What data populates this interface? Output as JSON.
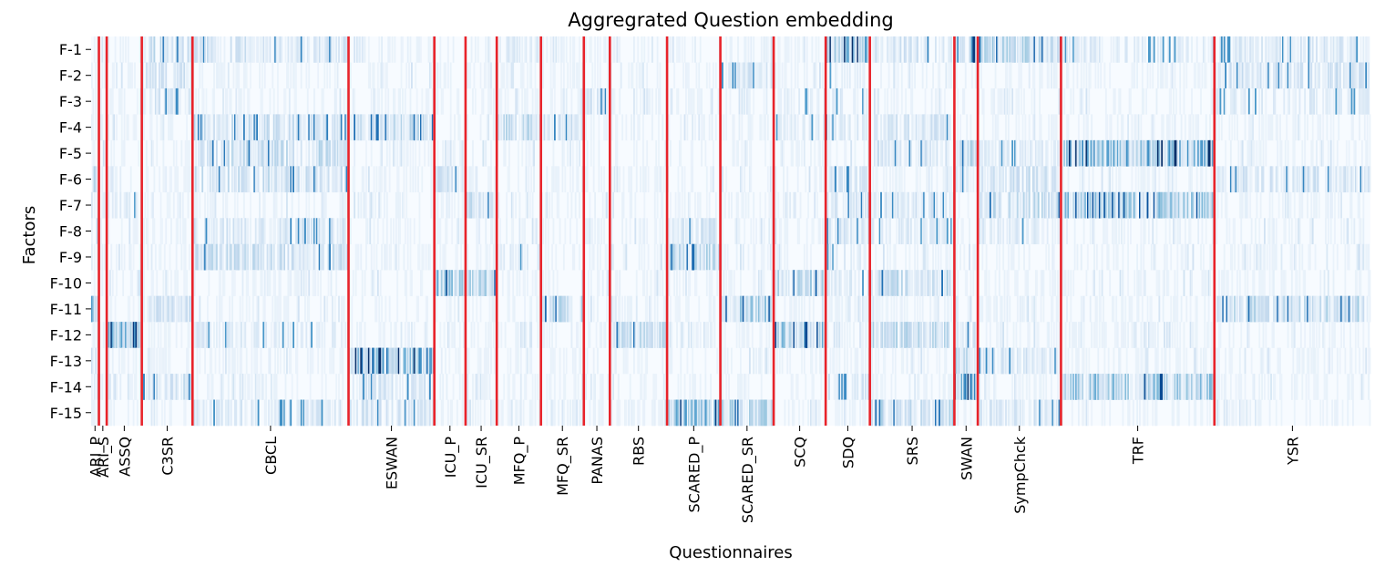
{
  "chart_data": {
    "type": "heatmap",
    "title": "Aggregrated Question embedding",
    "xlabel": "Questionnaires",
    "ylabel": "Factors",
    "rows": [
      "F-1",
      "F-2",
      "F-3",
      "F-4",
      "F-5",
      "F-6",
      "F-7",
      "F-8",
      "F-9",
      "F-10",
      "F-11",
      "F-12",
      "F-13",
      "F-14",
      "F-15"
    ],
    "colormap": "Blues",
    "divider_color": "#e8232a",
    "colorbar": false,
    "grid": false,
    "groups": [
      {
        "label": "ARI_P",
        "items": 6
      },
      {
        "label": "ARI_S",
        "items": 6
      },
      {
        "label": "ASSQ",
        "items": 27
      },
      {
        "label": "C3SR",
        "items": 39
      },
      {
        "label": "CBCL",
        "items": 120
      },
      {
        "label": "ESWAN",
        "items": 66
      },
      {
        "label": "ICU_P",
        "items": 24
      },
      {
        "label": "ICU_SR",
        "items": 24
      },
      {
        "label": "MFQ_P",
        "items": 34
      },
      {
        "label": "MFQ_SR",
        "items": 33
      },
      {
        "label": "PANAS",
        "items": 20
      },
      {
        "label": "RBS",
        "items": 44
      },
      {
        "label": "SCARED_P",
        "items": 41
      },
      {
        "label": "SCARED_SR",
        "items": 41
      },
      {
        "label": "SCQ",
        "items": 40
      },
      {
        "label": "SDQ",
        "items": 34
      },
      {
        "label": "SRS",
        "items": 65
      },
      {
        "label": "SWAN",
        "items": 18
      },
      {
        "label": "SympChck",
        "items": 64
      },
      {
        "label": "TRF",
        "items": 118
      },
      {
        "label": "YSR",
        "items": 120
      }
    ],
    "intensity": {
      "F-1": {
        "C3SR": 0.28,
        "CBCL": 0.22,
        "MFQ_P": 0.15,
        "SDQ": 0.55,
        "SRS": 0.22,
        "SWAN": 0.5,
        "SympChck": 0.35,
        "TRF": 0.15,
        "YSR": 0.18
      },
      "F-2": {
        "C3SR": 0.22,
        "SCARED_SR": 0.2,
        "YSR": 0.22,
        "SDQ": 0.12
      },
      "F-3": {
        "C3SR": 0.2,
        "PANAS": 0.22,
        "SDQ": 0.15,
        "SCQ": 0.12,
        "YSR": 0.15
      },
      "F-4": {
        "CBCL": 0.25,
        "ESWAN": 0.3,
        "MFQ_P": 0.3,
        "MFQ_SR": 0.22,
        "SRS": 0.2,
        "SDQ": 0.15,
        "SCQ": 0.15
      },
      "F-5": {
        "CBCL": 0.28,
        "SRS": 0.22,
        "TRF": 0.55,
        "SWAN": 0.3,
        "SympChck": 0.15
      },
      "F-6": {
        "ARI_P": 0.3,
        "CBCL": 0.25,
        "ICU_P": 0.22,
        "SDQ": 0.22,
        "SWAN": 0.2,
        "YSR": 0.22,
        "SympChck": 0.25
      },
      "F-7": {
        "TRF": 0.42,
        "ICU_SR": 0.25,
        "SDQ": 0.25,
        "SRS": 0.2,
        "SympChck": 0.3,
        "ASSQ": 0.15
      },
      "F-8": {
        "ARI_P": 0.3,
        "CBCL": 0.2,
        "SCARED_P": 0.2,
        "SDQ": 0.2,
        "SRS": 0.15,
        "SympChck": 0.15
      },
      "F-9": {
        "CBCL": 0.25,
        "SCARED_P": 0.32,
        "MFQ_P": 0.15,
        "SDQ": 0.15
      },
      "F-10": {
        "ICU_P": 0.45,
        "ICU_SR": 0.35,
        "SCQ": 0.35,
        "SRS": 0.3,
        "SDQ": 0.15
      },
      "F-11": {
        "ARI_P": 0.55,
        "MFQ_SR": 0.32,
        "SCARED_SR": 0.4,
        "YSR": 0.32,
        "C3SR": 0.22
      },
      "F-12": {
        "ASSQ": 0.5,
        "RBS": 0.3,
        "SCQ": 0.45,
        "SRS": 0.3,
        "SWAN": 0.25,
        "CBCL": 0.15
      },
      "F-13": {
        "ESWAN": 0.7,
        "ARI_P": 0.3,
        "SWAN": 0.3,
        "SympChck": 0.2
      },
      "F-14": {
        "C3SR": 0.25,
        "TRF": 0.45,
        "SWAN": 0.6,
        "SDQ": 0.2,
        "ESWAN": 0.2
      },
      "F-15": {
        "SCARED_P": 0.5,
        "SCARED_SR": 0.35,
        "SRS": 0.3,
        "CBCL": 0.18,
        "ESWAN": 0.2,
        "SympChck": 0.2
      }
    }
  }
}
